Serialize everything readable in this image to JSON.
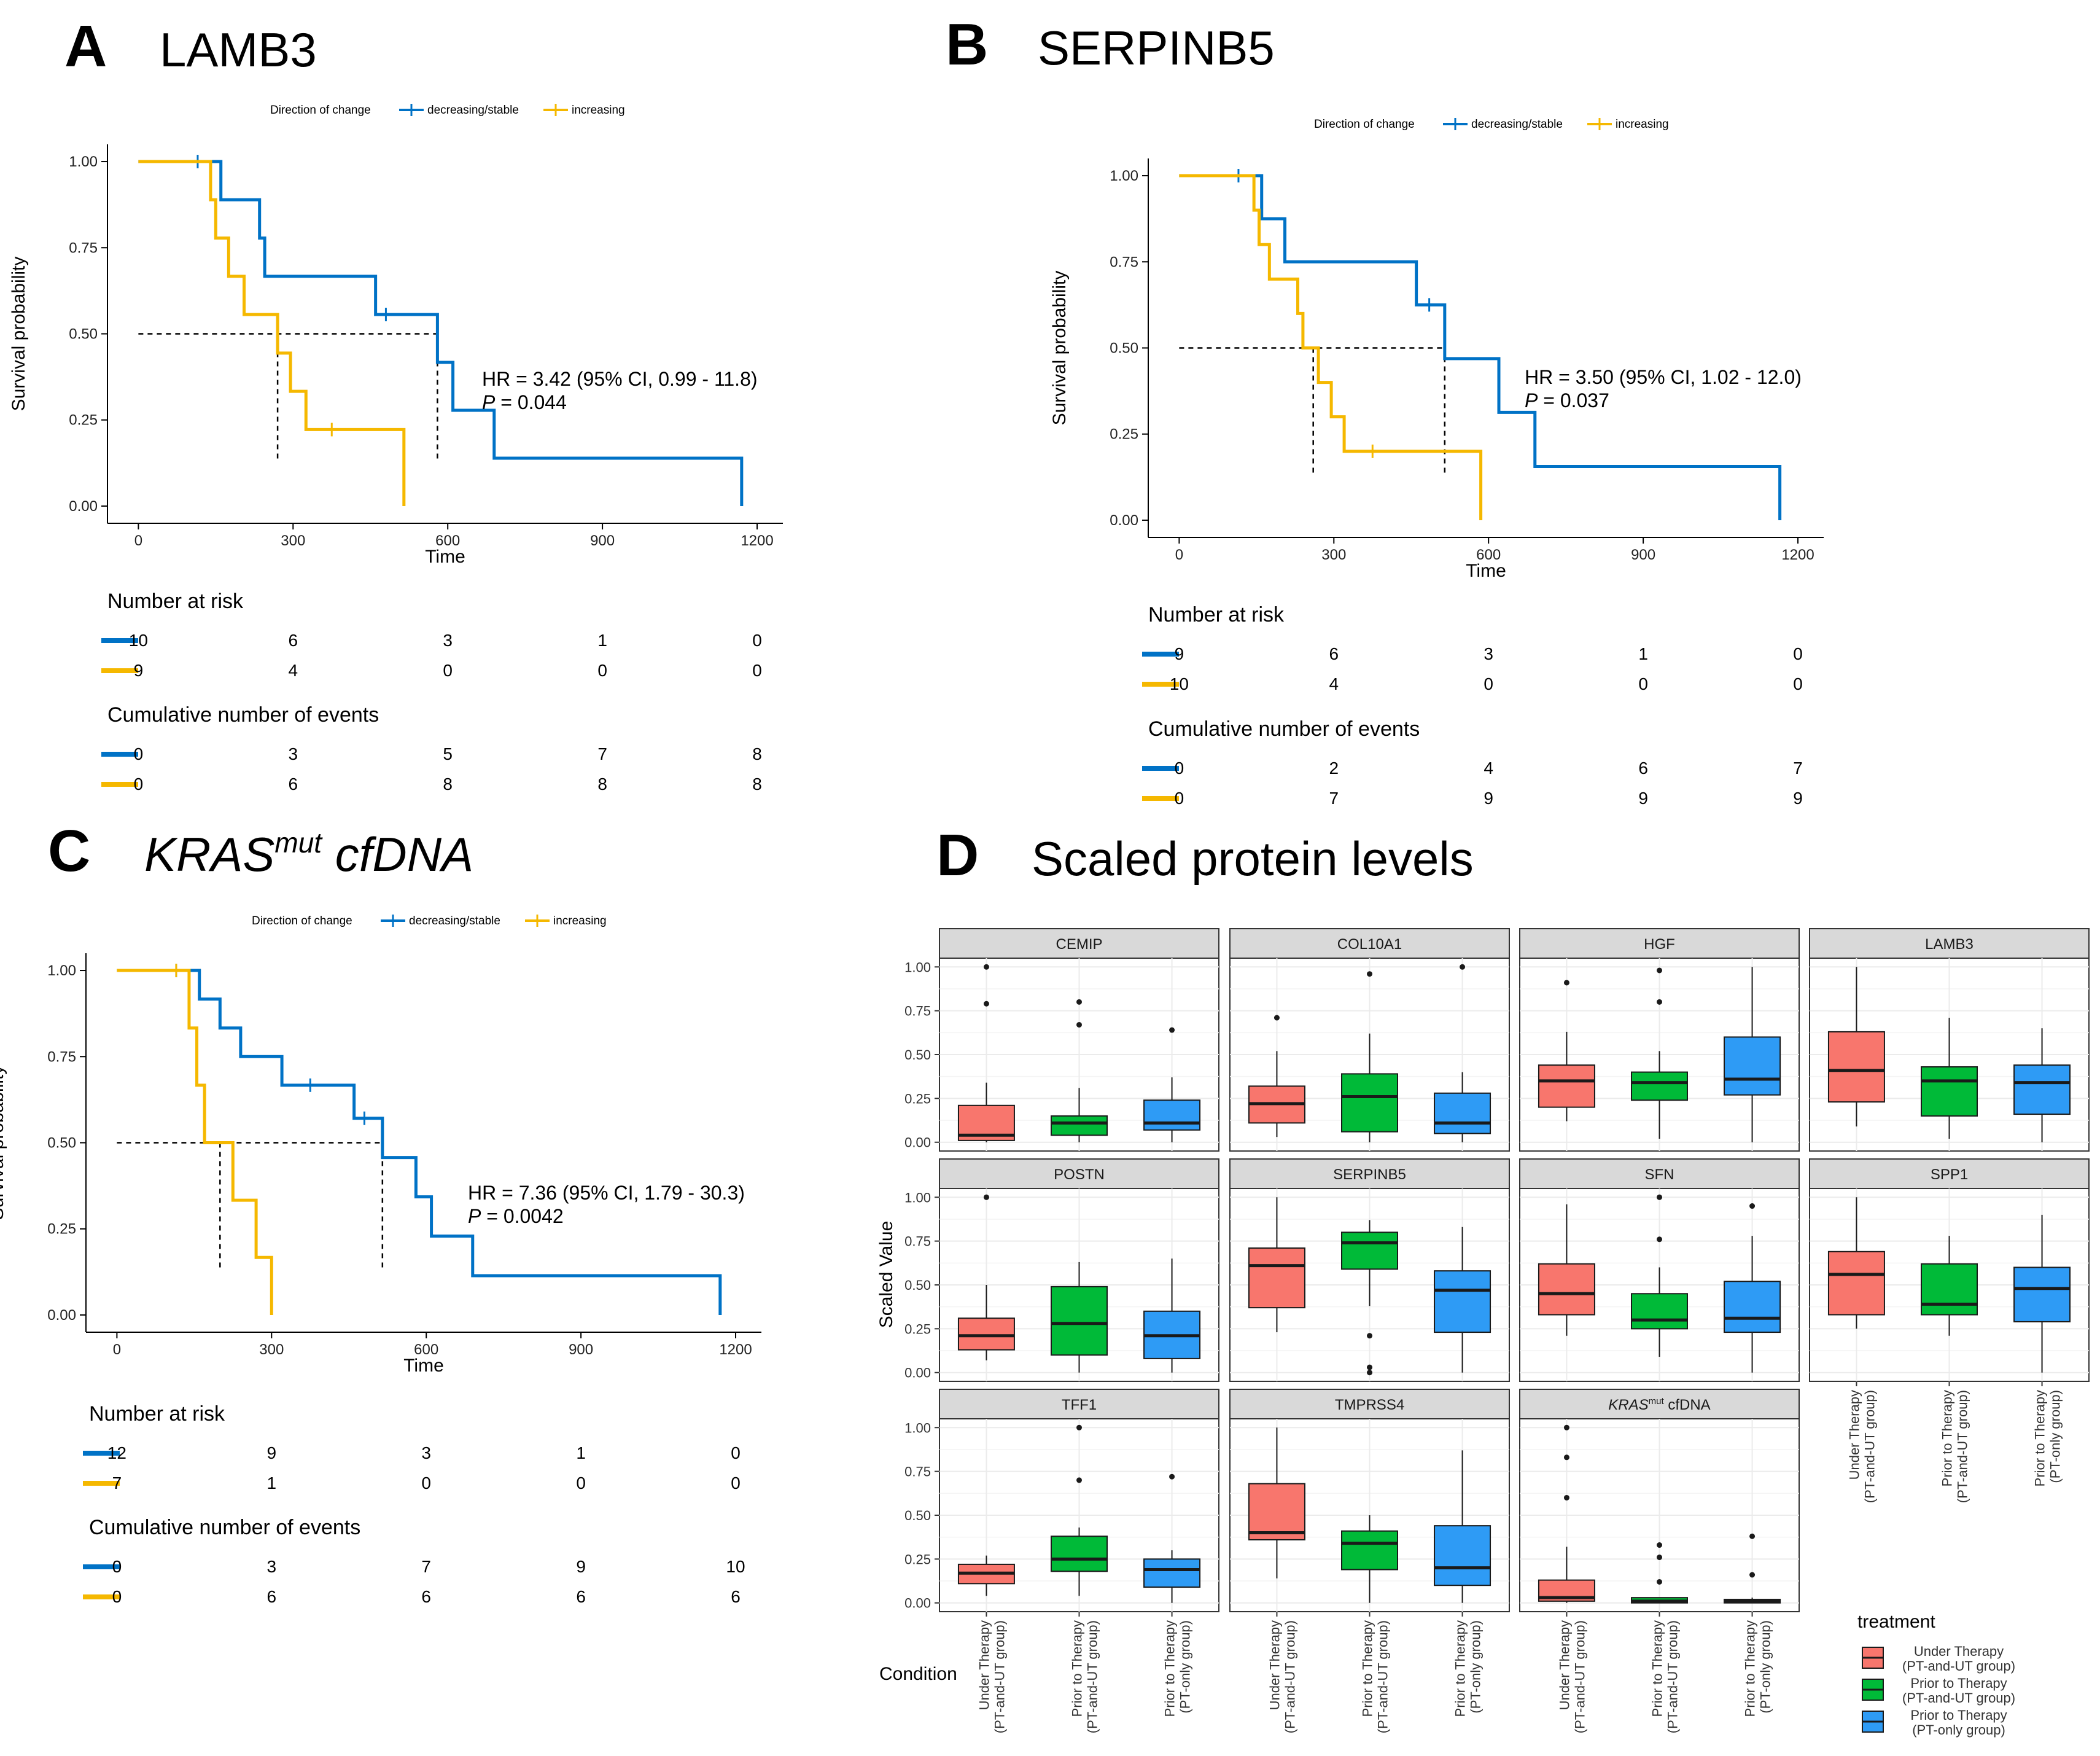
{
  "colors": {
    "blue": "#0072C6",
    "yellow": "#F5B800",
    "red_box": "#F8766D",
    "green_box": "#00BA38",
    "blue_box": "#2E9BF5",
    "strip_bg": "#D9D9D9",
    "grid": "#EBEBEB"
  },
  "chart_data": [
    {
      "type": "line",
      "id": "A",
      "panel_letter": "A",
      "title": "LAMB3",
      "legend_title": "Direction of change",
      "legend_items": [
        "decreasing/stable",
        "increasing"
      ],
      "xlabel": "Time",
      "ylabel": "Survival probability",
      "xlim": [
        -60,
        1250
      ],
      "ylim": [
        -0.05,
        1.05
      ],
      "xticks": [
        "0",
        "300",
        "600",
        "900",
        "1200"
      ],
      "yticks": [
        "0.00",
        "0.25",
        "0.50",
        "0.75",
        "1.00"
      ],
      "annotation": {
        "hr": "HR = 3.42 (95% CI, 0.99 - 11.8)",
        "p_label": "P",
        "p_value": " = 0.044"
      },
      "series": [
        {
          "name": "decreasing/stable",
          "color_key": "blue",
          "steps": [
            [
              0,
              1.0
            ],
            [
              160,
              0.889
            ],
            [
              235,
              0.778
            ],
            [
              245,
              0.667
            ],
            [
              460,
              0.556
            ],
            [
              580,
              0.417
            ],
            [
              610,
              0.278
            ],
            [
              690,
              0.139
            ],
            [
              1170,
              0.0
            ]
          ],
          "end": 1170,
          "censors": [
            [
              115,
              1.0
            ],
            [
              480,
              0.556
            ]
          ]
        },
        {
          "name": "increasing",
          "color_key": "yellow",
          "steps": [
            [
              0,
              1.0
            ],
            [
              140,
              0.889
            ],
            [
              150,
              0.778
            ],
            [
              175,
              0.667
            ],
            [
              205,
              0.556
            ],
            [
              270,
              0.444
            ],
            [
              295,
              0.333
            ],
            [
              325,
              0.222
            ],
            [
              515,
              0.0
            ]
          ],
          "end": 515,
          "censors": [
            [
              375,
              0.222
            ]
          ]
        }
      ],
      "medians": [
        270,
        580
      ],
      "risk_table": {
        "title": "Number at risk",
        "rows": [
          [
            "10",
            "6",
            "3",
            "1",
            "0"
          ],
          [
            "9",
            "4",
            "0",
            "0",
            "0"
          ]
        ]
      },
      "events_table": {
        "title": "Cumulative number of events",
        "rows": [
          [
            "0",
            "3",
            "5",
            "7",
            "8"
          ],
          [
            "0",
            "6",
            "8",
            "8",
            "8"
          ]
        ]
      }
    },
    {
      "type": "line",
      "id": "B",
      "panel_letter": "B",
      "title": "SERPINB5",
      "legend_title": "Direction of change",
      "legend_items": [
        "decreasing/stable",
        "increasing"
      ],
      "xlabel": "Time",
      "ylabel": "Survival probability",
      "xlim": [
        -60,
        1250
      ],
      "ylim": [
        -0.05,
        1.05
      ],
      "xticks": [
        "0",
        "300",
        "600",
        "900",
        "1200"
      ],
      "yticks": [
        "0.00",
        "0.25",
        "0.50",
        "0.75",
        "1.00"
      ],
      "annotation": {
        "hr": "HR = 3.50 (95% CI, 1.02 - 12.0)",
        "p_label": "P",
        "p_value": " = 0.037"
      },
      "series": [
        {
          "name": "decreasing/stable",
          "color_key": "blue",
          "steps": [
            [
              0,
              1.0
            ],
            [
              160,
              0.875
            ],
            [
              205,
              0.75
            ],
            [
              460,
              0.625
            ],
            [
              515,
              0.469
            ],
            [
              620,
              0.313
            ],
            [
              690,
              0.156
            ],
            [
              1165,
              0.0
            ]
          ],
          "end": 1165,
          "censors": [
            [
              115,
              1.0
            ],
            [
              485,
              0.625
            ]
          ]
        },
        {
          "name": "increasing",
          "color_key": "yellow",
          "steps": [
            [
              0,
              1.0
            ],
            [
              145,
              0.9
            ],
            [
              155,
              0.8
            ],
            [
              175,
              0.7
            ],
            [
              230,
              0.6
            ],
            [
              240,
              0.5
            ],
            [
              270,
              0.4
            ],
            [
              295,
              0.3
            ],
            [
              320,
              0.2
            ],
            [
              585,
              0.0
            ]
          ],
          "end": 585,
          "censors": [
            [
              375,
              0.2
            ]
          ]
        }
      ],
      "medians": [
        260,
        515
      ],
      "risk_table": {
        "title": "Number at risk",
        "rows": [
          [
            "9",
            "6",
            "3",
            "1",
            "0"
          ],
          [
            "10",
            "4",
            "0",
            "0",
            "0"
          ]
        ]
      },
      "events_table": {
        "title": "Cumulative number of events",
        "rows": [
          [
            "0",
            "2",
            "4",
            "6",
            "7"
          ],
          [
            "0",
            "7",
            "9",
            "9",
            "9"
          ]
        ]
      }
    },
    {
      "type": "line",
      "id": "C",
      "panel_letter": "C",
      "title_main": "KRAS",
      "title_sup": "mut",
      "title_rest": " cfDNA",
      "legend_title": "Direction of change",
      "legend_items": [
        "decreasing/stable",
        "increasing"
      ],
      "xlabel": "Time",
      "ylabel": "Survival probability",
      "xlim": [
        -60,
        1250
      ],
      "ylim": [
        -0.05,
        1.05
      ],
      "xticks": [
        "0",
        "300",
        "600",
        "900",
        "1200"
      ],
      "yticks": [
        "0.00",
        "0.25",
        "0.50",
        "0.75",
        "1.00"
      ],
      "annotation": {
        "hr": "HR = 7.36 (95% CI, 1.79 - 30.3)",
        "p_label": "P",
        "p_value": " = 0.0042"
      },
      "series": [
        {
          "name": "decreasing/stable",
          "color_key": "blue",
          "steps": [
            [
              0,
              1.0
            ],
            [
              160,
              0.917
            ],
            [
              200,
              0.833
            ],
            [
              240,
              0.75
            ],
            [
              320,
              0.667
            ],
            [
              460,
              0.571
            ],
            [
              515,
              0.457
            ],
            [
              580,
              0.343
            ],
            [
              610,
              0.229
            ],
            [
              690,
              0.114
            ],
            [
              1170,
              0.0
            ]
          ],
          "end": 1170,
          "censors": [
            [
              115,
              1.0
            ],
            [
              375,
              0.667
            ],
            [
              480,
              0.571
            ]
          ]
        },
        {
          "name": "increasing",
          "color_key": "yellow",
          "steps": [
            [
              0,
              1.0
            ],
            [
              140,
              0.833
            ],
            [
              155,
              0.667
            ],
            [
              170,
              0.5
            ],
            [
              225,
              0.333
            ],
            [
              270,
              0.167
            ],
            [
              300,
              0.0
            ]
          ],
          "end": 300,
          "censors": [
            [
              115,
              1.0
            ]
          ]
        }
      ],
      "medians": [
        200,
        515
      ],
      "risk_table": {
        "title": "Number at risk",
        "rows": [
          [
            "12",
            "9",
            "3",
            "1",
            "0"
          ],
          [
            "7",
            "1",
            "0",
            "0",
            "0"
          ]
        ]
      },
      "events_table": {
        "title": "Cumulative number of events",
        "rows": [
          [
            "0",
            "3",
            "7",
            "9",
            "10"
          ],
          [
            "0",
            "6",
            "6",
            "6",
            "6"
          ]
        ]
      }
    },
    {
      "type": "box",
      "id": "D",
      "panel_letter": "D",
      "title": "Scaled protein levels",
      "ylabel": "Scaled Value",
      "xlabel": "Condition",
      "ylim": [
        -0.05,
        1.05
      ],
      "yticks": [
        "0.00",
        "0.25",
        "0.50",
        "0.75",
        "1.00"
      ],
      "categories": [
        "Under Therapy\n(PT-and-UT group)",
        "Prior to Therapy\n(PT-and-UT group)",
        "Prior to Therapy\n(PT-only group)"
      ],
      "category_lines": [
        [
          "Under Therapy",
          "(PT-and-UT group)"
        ],
        [
          "Prior to Therapy",
          "(PT-and-UT group)"
        ],
        [
          "Prior to Therapy",
          "(PT-only group)"
        ]
      ],
      "legend_title": "treatment",
      "legend_items": [
        [
          "Under Therapy",
          "(PT-and-UT group)"
        ],
        [
          "Prior to Therapy",
          "(PT-and-UT group)"
        ],
        [
          "Prior to Therapy",
          "(PT-only group)"
        ]
      ],
      "facets": [
        {
          "name": "CEMIP",
          "boxes": [
            {
              "min": 0.0,
              "q1": 0.01,
              "med": 0.04,
              "q3": 0.21,
              "max": 0.34,
              "outliers": [
                1.0,
                0.79
              ]
            },
            {
              "min": 0.0,
              "q1": 0.04,
              "med": 0.11,
              "q3": 0.15,
              "max": 0.31,
              "outliers": [
                0.8,
                0.67
              ]
            },
            {
              "min": 0.0,
              "q1": 0.07,
              "med": 0.11,
              "q3": 0.24,
              "max": 0.37,
              "outliers": [
                0.64
              ]
            }
          ]
        },
        {
          "name": "COL10A1",
          "boxes": [
            {
              "min": 0.03,
              "q1": 0.11,
              "med": 0.22,
              "q3": 0.32,
              "max": 0.52,
              "outliers": [
                0.71
              ]
            },
            {
              "min": 0.0,
              "q1": 0.06,
              "med": 0.26,
              "q3": 0.39,
              "max": 0.62,
              "outliers": [
                0.96
              ]
            },
            {
              "min": 0.0,
              "q1": 0.05,
              "med": 0.11,
              "q3": 0.28,
              "max": 0.4,
              "outliers": [
                1.0
              ]
            }
          ]
        },
        {
          "name": "HGF",
          "boxes": [
            {
              "min": 0.12,
              "q1": 0.2,
              "med": 0.35,
              "q3": 0.44,
              "max": 0.63,
              "outliers": [
                0.91
              ]
            },
            {
              "min": 0.02,
              "q1": 0.24,
              "med": 0.34,
              "q3": 0.4,
              "max": 0.52,
              "outliers": [
                0.98,
                0.8
              ]
            },
            {
              "min": 0.0,
              "q1": 0.27,
              "med": 0.36,
              "q3": 0.6,
              "max": 1.0,
              "outliers": []
            }
          ]
        },
        {
          "name": "LAMB3",
          "boxes": [
            {
              "min": 0.09,
              "q1": 0.23,
              "med": 0.41,
              "q3": 0.63,
              "max": 1.0,
              "outliers": []
            },
            {
              "min": 0.02,
              "q1": 0.15,
              "med": 0.35,
              "q3": 0.43,
              "max": 0.71,
              "outliers": []
            },
            {
              "min": 0.0,
              "q1": 0.16,
              "med": 0.34,
              "q3": 0.44,
              "max": 0.65,
              "outliers": []
            }
          ]
        },
        {
          "name": "POSTN",
          "boxes": [
            {
              "min": 0.07,
              "q1": 0.13,
              "med": 0.21,
              "q3": 0.31,
              "max": 0.5,
              "outliers": [
                1.0
              ]
            },
            {
              "min": 0.0,
              "q1": 0.1,
              "med": 0.28,
              "q3": 0.49,
              "max": 0.63,
              "outliers": []
            },
            {
              "min": 0.0,
              "q1": 0.08,
              "med": 0.21,
              "q3": 0.35,
              "max": 0.65,
              "outliers": []
            }
          ]
        },
        {
          "name": "SERPINB5",
          "boxes": [
            {
              "min": 0.23,
              "q1": 0.37,
              "med": 0.61,
              "q3": 0.71,
              "max": 1.0,
              "outliers": []
            },
            {
              "min": 0.38,
              "q1": 0.59,
              "med": 0.74,
              "q3": 0.8,
              "max": 0.87,
              "outliers": [
                0.21,
                0.03,
                0.0
              ]
            },
            {
              "min": 0.0,
              "q1": 0.23,
              "med": 0.47,
              "q3": 0.58,
              "max": 0.83,
              "outliers": []
            }
          ]
        },
        {
          "name": "SFN",
          "boxes": [
            {
              "min": 0.21,
              "q1": 0.33,
              "med": 0.45,
              "q3": 0.62,
              "max": 0.96,
              "outliers": []
            },
            {
              "min": 0.09,
              "q1": 0.25,
              "med": 0.3,
              "q3": 0.45,
              "max": 0.6,
              "outliers": [
                1.0,
                0.76
              ]
            },
            {
              "min": 0.0,
              "q1": 0.23,
              "med": 0.31,
              "q3": 0.52,
              "max": 0.78,
              "outliers": [
                0.95
              ]
            }
          ]
        },
        {
          "name": "SPP1",
          "boxes": [
            {
              "min": 0.25,
              "q1": 0.33,
              "med": 0.56,
              "q3": 0.69,
              "max": 1.0,
              "outliers": []
            },
            {
              "min": 0.21,
              "q1": 0.33,
              "med": 0.39,
              "q3": 0.62,
              "max": 0.78,
              "outliers": []
            },
            {
              "min": 0.0,
              "q1": 0.29,
              "med": 0.48,
              "q3": 0.6,
              "max": 0.9,
              "outliers": []
            }
          ]
        },
        {
          "name": "TFF1",
          "boxes": [
            {
              "min": 0.04,
              "q1": 0.11,
              "med": 0.17,
              "q3": 0.22,
              "max": 0.27,
              "outliers": []
            },
            {
              "min": 0.04,
              "q1": 0.18,
              "med": 0.25,
              "q3": 0.38,
              "max": 0.43,
              "outliers": [
                1.0,
                0.7
              ]
            },
            {
              "min": 0.0,
              "q1": 0.09,
              "med": 0.19,
              "q3": 0.25,
              "max": 0.3,
              "outliers": [
                0.72
              ]
            }
          ]
        },
        {
          "name": "TMPRSS4",
          "boxes": [
            {
              "min": 0.14,
              "q1": 0.36,
              "med": 0.4,
              "q3": 0.68,
              "max": 1.0,
              "outliers": []
            },
            {
              "min": 0.0,
              "q1": 0.19,
              "med": 0.34,
              "q3": 0.41,
              "max": 0.5,
              "outliers": []
            },
            {
              "min": 0.0,
              "q1": 0.1,
              "med": 0.2,
              "q3": 0.44,
              "max": 0.87,
              "outliers": []
            }
          ]
        },
        {
          "name_main": "KRAS",
          "name_sup": "mut",
          "name_rest": " cfDNA",
          "boxes": [
            {
              "min": 0.0,
              "q1": 0.01,
              "med": 0.03,
              "q3": 0.13,
              "max": 0.32,
              "outliers": [
                1.0,
                0.83,
                0.6
              ]
            },
            {
              "min": 0.0,
              "q1": 0.0,
              "med": 0.01,
              "q3": 0.03,
              "max": 0.03,
              "outliers": [
                0.33,
                0.26,
                0.12
              ]
            },
            {
              "min": 0.0,
              "q1": 0.0,
              "med": 0.01,
              "q3": 0.02,
              "max": 0.03,
              "outliers": [
                0.38,
                0.16
              ]
            }
          ]
        }
      ]
    }
  ]
}
